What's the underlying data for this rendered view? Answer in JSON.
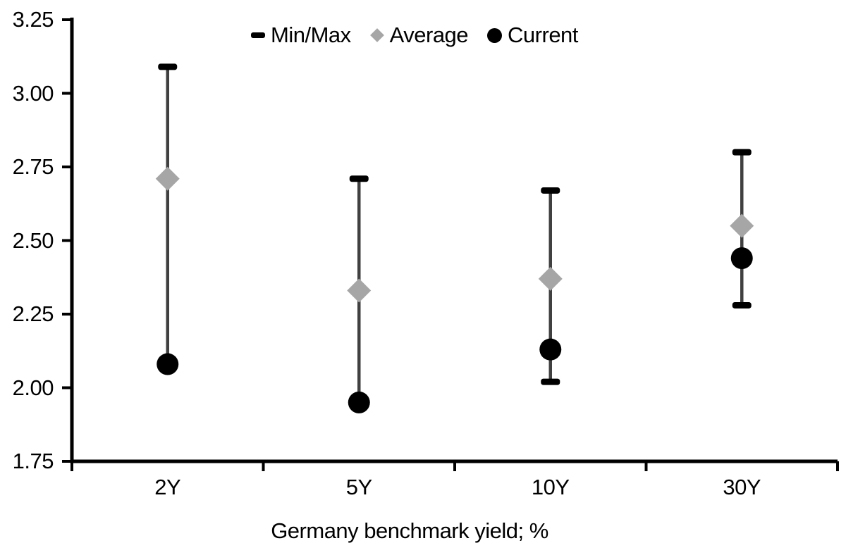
{
  "chart_data": {
    "type": "scatter",
    "subtype": "min-max-range-with-markers",
    "xlabel": "Germany benchmark yield; %",
    "ylabel": "",
    "title": "",
    "categories": [
      "2Y",
      "5Y",
      "10Y",
      "30Y"
    ],
    "ylim": [
      1.75,
      3.25
    ],
    "ytick_step": 0.25,
    "y_ticks": [
      "3.25",
      "3.00",
      "2.75",
      "2.50",
      "2.25",
      "2.00",
      "1.75"
    ],
    "grid": false,
    "legend_position": "top-center-inside",
    "series": [
      {
        "name": "Min/Max",
        "type": "range",
        "marker": "cap",
        "min": [
          2.08,
          1.95,
          2.02,
          2.28
        ],
        "max": [
          3.09,
          2.71,
          2.67,
          2.8
        ]
      },
      {
        "name": "Average",
        "type": "point",
        "marker": "diamond",
        "color": "#a6a6a6",
        "values": [
          2.71,
          2.33,
          2.37,
          2.55
        ]
      },
      {
        "name": "Current",
        "type": "point",
        "marker": "circle",
        "color": "#000000",
        "values": [
          2.08,
          1.95,
          2.13,
          2.44
        ]
      }
    ],
    "colors": {
      "range_line": "#404040",
      "cap": "#000000",
      "average": "#a6a6a6",
      "current": "#000000",
      "axis": "#000000",
      "text": "#000000",
      "background": "#ffffff"
    }
  }
}
